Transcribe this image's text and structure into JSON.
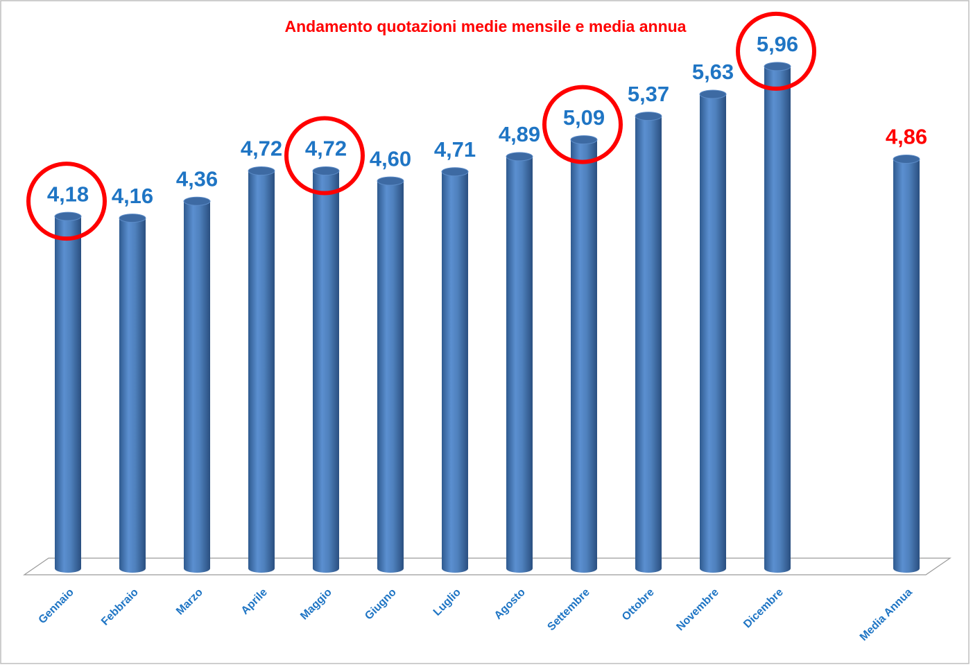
{
  "chart_data": {
    "type": "bar",
    "title": "Andamento quotazioni medie mensile e media annua",
    "categories": [
      "Gennaio",
      "Febbraio",
      "Marzo",
      "Aprile",
      "Maggio",
      "Giugno",
      "Luglio",
      "Agosto",
      "Settembre",
      "Ottobre",
      "Novembre",
      "Dicembre",
      null,
      "Media Annua"
    ],
    "values": [
      4.18,
      4.16,
      4.36,
      4.72,
      4.72,
      4.6,
      4.71,
      4.89,
      5.09,
      5.37,
      5.63,
      5.96,
      null,
      4.86
    ],
    "value_labels": [
      "4,18",
      "4,16",
      "4,36",
      "4,72",
      "4,72",
      "4,60",
      "4,71",
      "4,89",
      "5,09",
      "5,37",
      "5,63",
      "5,96",
      null,
      "4,86"
    ],
    "color": "#4f81bd",
    "label_colors": [
      "#1f75c4",
      "#1f75c4",
      "#1f75c4",
      "#1f75c4",
      "#1f75c4",
      "#1f75c4",
      "#1f75c4",
      "#1f75c4",
      "#1f75c4",
      "#1f75c4",
      "#1f75c4",
      "#1f75c4",
      null,
      "#ff0000"
    ],
    "circled": [
      0,
      4,
      8,
      11
    ],
    "circle_color": "#ff0000",
    "ylim": [
      0,
      6.7
    ]
  }
}
